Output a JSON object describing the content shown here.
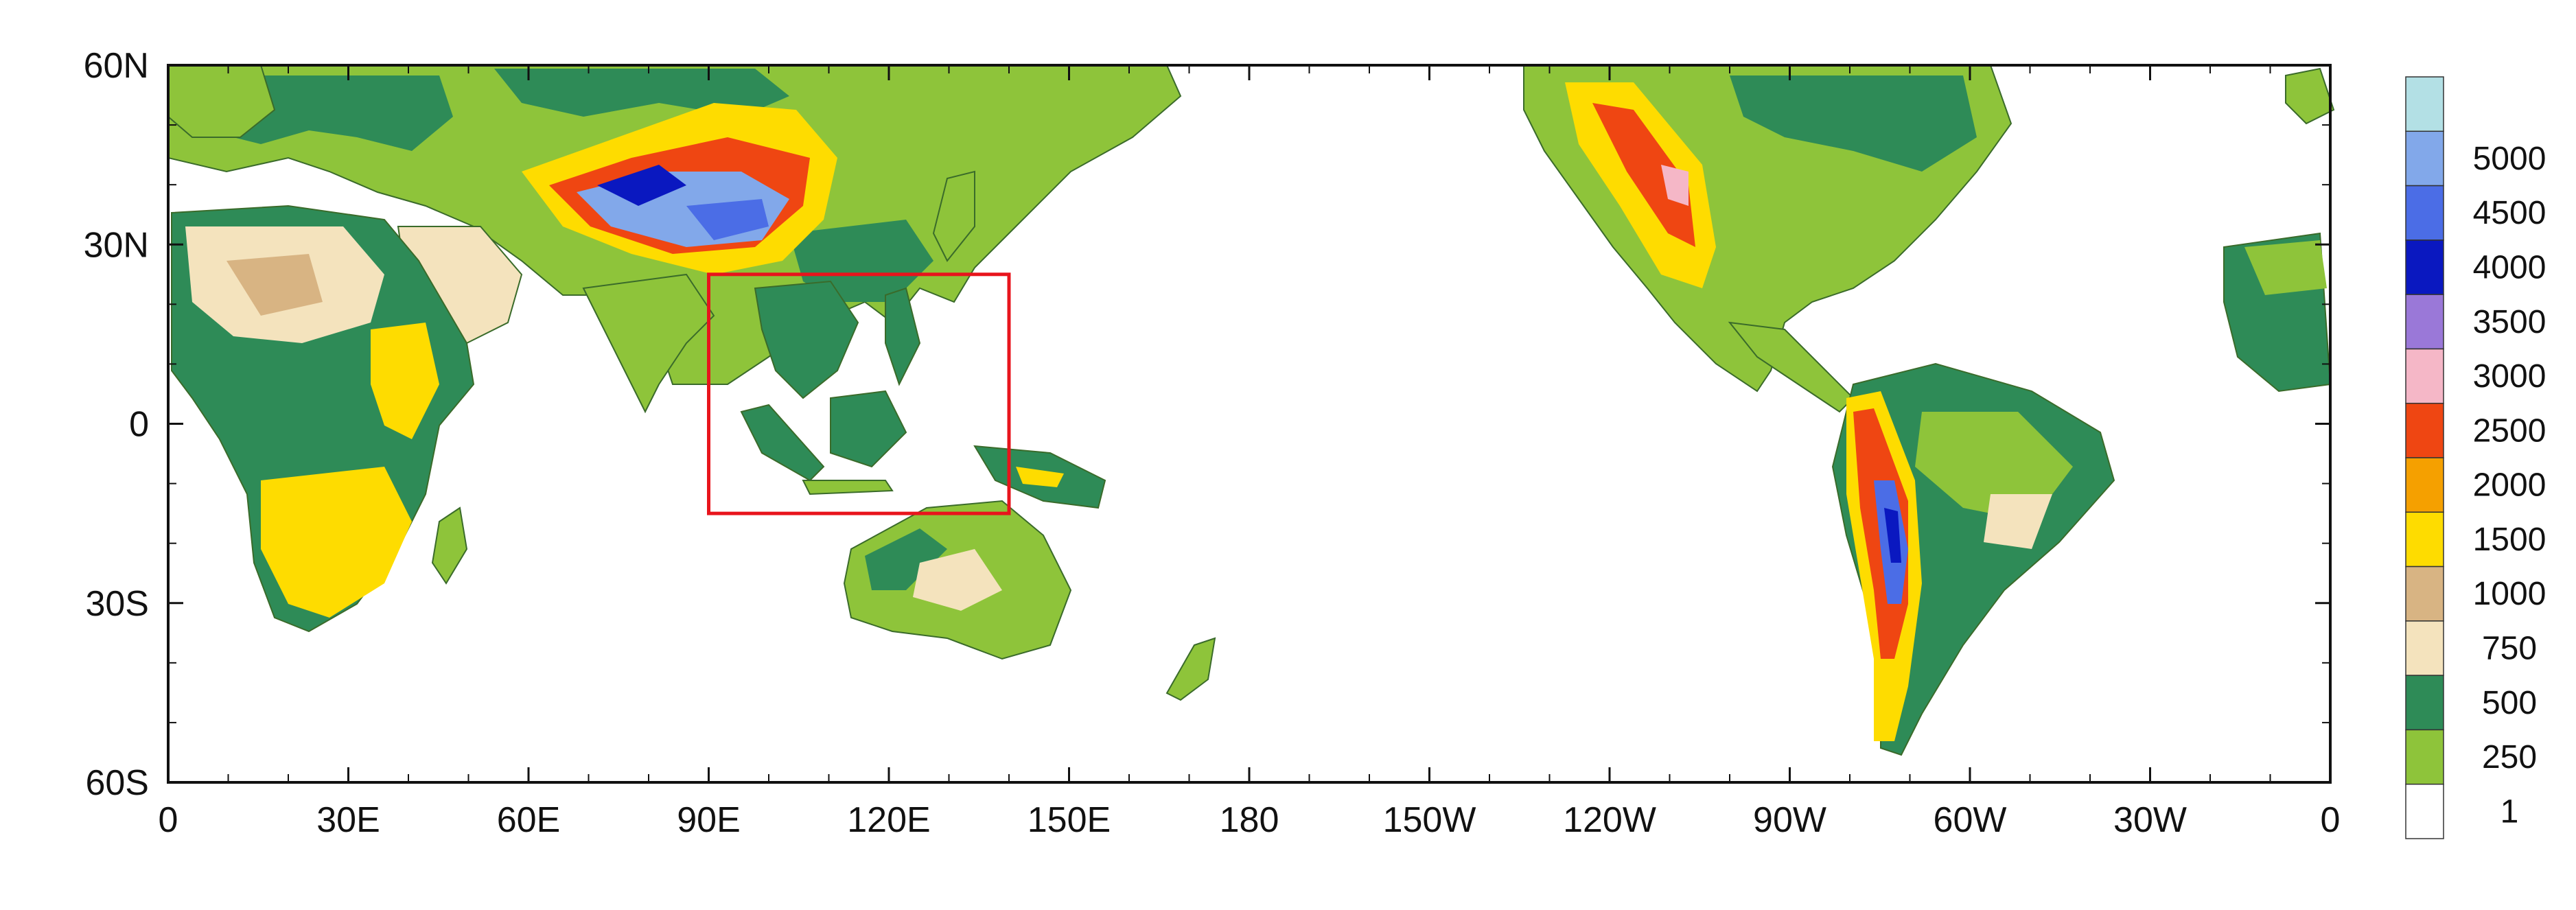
{
  "map": {
    "projection": "cylindrical-equidistant",
    "lon_range": [
      0,
      360
    ],
    "lat_range": [
      -60,
      60
    ],
    "x_ticks": [
      {
        "lon": 0,
        "label": "0"
      },
      {
        "lon": 30,
        "label": "30E"
      },
      {
        "lon": 60,
        "label": "60E"
      },
      {
        "lon": 90,
        "label": "90E"
      },
      {
        "lon": 120,
        "label": "120E"
      },
      {
        "lon": 150,
        "label": "150E"
      },
      {
        "lon": 180,
        "label": "180"
      },
      {
        "lon": 210,
        "label": "150W"
      },
      {
        "lon": 240,
        "label": "120W"
      },
      {
        "lon": 270,
        "label": "90W"
      },
      {
        "lon": 300,
        "label": "60W"
      },
      {
        "lon": 330,
        "label": "30W"
      },
      {
        "lon": 360,
        "label": "0"
      }
    ],
    "y_ticks": [
      {
        "lat": 60,
        "label": "60N"
      },
      {
        "lat": 30,
        "label": "30N"
      },
      {
        "lat": 0,
        "label": "0"
      },
      {
        "lat": -30,
        "label": "30S"
      },
      {
        "lat": -60,
        "label": "60S"
      }
    ],
    "highlight_box": {
      "lon_min": 90,
      "lon_max": 140,
      "lat_min": -15,
      "lat_max": 25,
      "color": "#e8141c"
    },
    "ocean_color": "#ffffff"
  },
  "legend": {
    "levels": [
      {
        "label": "",
        "color": "#b3e0e5"
      },
      {
        "label": "5000",
        "color": "#82a8ea"
      },
      {
        "label": "4500",
        "color": "#4b6de6"
      },
      {
        "label": "4000",
        "color": "#0a18c0"
      },
      {
        "label": "3500",
        "color": "#9a78d8"
      },
      {
        "label": "3000",
        "color": "#f5b7c7"
      },
      {
        "label": "2500",
        "color": "#ef4612"
      },
      {
        "label": "2000",
        "color": "#f5a000"
      },
      {
        "label": "1500",
        "color": "#fedc00"
      },
      {
        "label": "1000",
        "color": "#d8b483"
      },
      {
        "label": "750",
        "color": "#f4e3bd"
      },
      {
        "label": "500",
        "color": "#2e8b57"
      },
      {
        "label": "250",
        "color": "#8ec43a"
      },
      {
        "label": "1",
        "color": "#ffffff"
      }
    ]
  },
  "colors": {
    "land_low": "#8ec43a",
    "land_green_dark": "#2e8b57",
    "land_tan": "#f4e3bd",
    "land_brown": "#d8b483",
    "land_yellow": "#fedc00",
    "land_orange": "#f5a000",
    "land_red": "#ef4612",
    "plateau_blue": "#4b6de6",
    "plateau_light": "#82a8ea",
    "plateau_dark": "#0a18c0"
  }
}
